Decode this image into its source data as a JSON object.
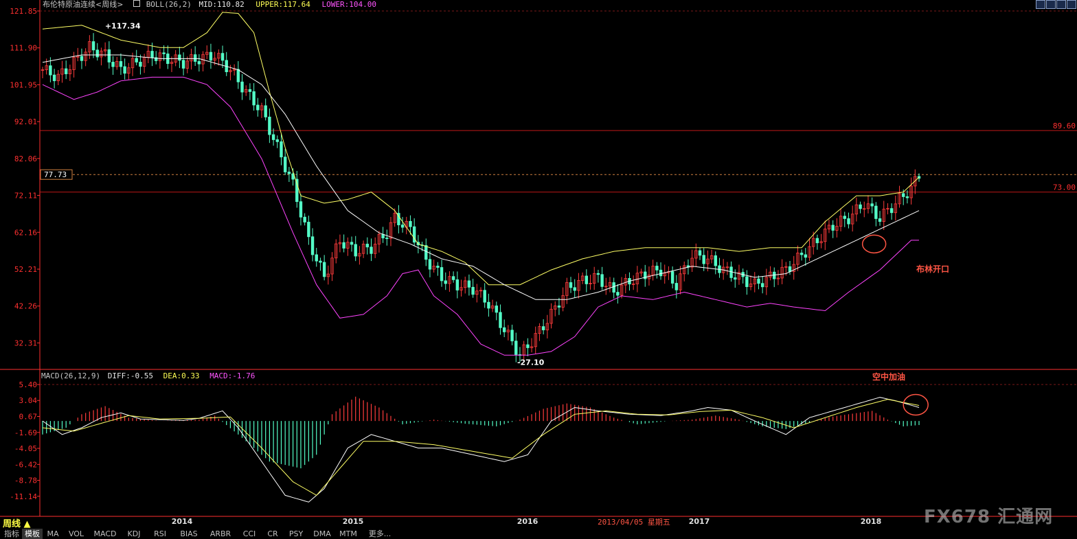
{
  "header": {
    "title": "布伦特原油连续<周线>",
    "boll_label": "BOLL(26,2)",
    "mid": "MID:110.82",
    "upper": "UPPER:117.64",
    "lower": "LOWER:104.00",
    "macd_label": "MACD(26,12,9)",
    "diff": "DIFF:-0.55",
    "dea": "DEA:0.33",
    "macd": "MACD:-1.76"
  },
  "colors": {
    "up": "#ff3c3c",
    "down": "#54ffc8",
    "mid": "#ffffff",
    "upper": "#ffff66",
    "lower": "#ff44ff",
    "axis": "#ff3030",
    "grid": "#7a1818",
    "annot": "#ff5544"
  },
  "chart_data": [
    {
      "type": "candlestick",
      "yticks": [
        "121.85",
        "111.90",
        "101.95",
        "92.01",
        "82.06",
        "72.11",
        "62.16",
        "52.21",
        "42.26",
        "32.31"
      ],
      "ylim": [
        28.5,
        121.85
      ],
      "xlabels": [
        "2014",
        "2015",
        "2016",
        "2017",
        "2018"
      ],
      "close_path": [
        [
          0,
          106
        ],
        [
          4,
          104
        ],
        [
          8,
          108
        ],
        [
          12,
          112
        ],
        [
          16,
          110
        ],
        [
          20,
          106
        ],
        [
          24,
          108
        ],
        [
          28,
          110
        ],
        [
          32,
          109
        ],
        [
          36,
          108
        ],
        [
          40,
          109
        ],
        [
          44,
          110
        ],
        [
          48,
          106
        ],
        [
          52,
          100
        ],
        [
          56,
          95
        ],
        [
          60,
          85
        ],
        [
          64,
          75
        ],
        [
          68,
          60
        ],
        [
          72,
          50
        ],
        [
          76,
          60
        ],
        [
          80,
          57
        ],
        [
          84,
          58
        ],
        [
          88,
          62
        ],
        [
          90,
          66
        ],
        [
          94,
          63
        ],
        [
          98,
          55
        ],
        [
          102,
          50
        ],
        [
          106,
          48
        ],
        [
          110,
          47
        ],
        [
          114,
          43
        ],
        [
          118,
          36
        ],
        [
          122,
          29
        ],
        [
          126,
          34
        ],
        [
          130,
          40
        ],
        [
          134,
          47
        ],
        [
          138,
          49
        ],
        [
          142,
          50
        ],
        [
          146,
          46
        ],
        [
          150,
          49
        ],
        [
          154,
          51
        ],
        [
          158,
          52
        ],
        [
          162,
          48
        ],
        [
          166,
          56
        ],
        [
          170,
          55
        ],
        [
          174,
          52
        ],
        [
          178,
          50
        ],
        [
          182,
          48
        ],
        [
          186,
          50
        ],
        [
          190,
          52
        ],
        [
          194,
          56
        ],
        [
          198,
          60
        ],
        [
          202,
          64
        ],
        [
          206,
          66
        ],
        [
          210,
          70
        ],
        [
          214,
          66
        ],
        [
          218,
          70
        ],
        [
          222,
          74
        ],
        [
          224,
          77.7
        ]
      ],
      "mid_path": [
        [
          0,
          108
        ],
        [
          10,
          110
        ],
        [
          20,
          110
        ],
        [
          30,
          109
        ],
        [
          40,
          109
        ],
        [
          50,
          106
        ],
        [
          56,
          102
        ],
        [
          62,
          94
        ],
        [
          70,
          80
        ],
        [
          78,
          68
        ],
        [
          86,
          62
        ],
        [
          94,
          59
        ],
        [
          102,
          55
        ],
        [
          110,
          53
        ],
        [
          118,
          48
        ],
        [
          126,
          44
        ],
        [
          134,
          44
        ],
        [
          142,
          46
        ],
        [
          150,
          49
        ],
        [
          158,
          51
        ],
        [
          166,
          53
        ],
        [
          174,
          52
        ],
        [
          182,
          50
        ],
        [
          190,
          51
        ],
        [
          198,
          55
        ],
        [
          206,
          59
        ],
        [
          214,
          63
        ],
        [
          220,
          66
        ],
        [
          224,
          68
        ]
      ],
      "upper_path": [
        [
          0,
          117
        ],
        [
          10,
          118
        ],
        [
          20,
          114
        ],
        [
          30,
          112
        ],
        [
          36,
          112
        ],
        [
          42,
          116
        ],
        [
          46,
          121.5
        ],
        [
          50,
          121.2
        ],
        [
          54,
          116
        ],
        [
          58,
          100
        ],
        [
          62,
          85
        ],
        [
          66,
          72
        ],
        [
          72,
          70
        ],
        [
          78,
          71
        ],
        [
          84,
          73
        ],
        [
          90,
          68
        ],
        [
          96,
          59
        ],
        [
          102,
          57
        ],
        [
          108,
          54
        ],
        [
          114,
          48
        ],
        [
          122,
          48
        ],
        [
          130,
          52
        ],
        [
          138,
          55
        ],
        [
          146,
          57
        ],
        [
          154,
          58
        ],
        [
          162,
          58
        ],
        [
          170,
          58
        ],
        [
          178,
          57
        ],
        [
          186,
          58
        ],
        [
          194,
          58
        ],
        [
          200,
          65
        ],
        [
          208,
          72
        ],
        [
          214,
          72
        ],
        [
          220,
          73
        ],
        [
          224,
          77
        ]
      ],
      "lower_path": [
        [
          0,
          102
        ],
        [
          8,
          98
        ],
        [
          14,
          100
        ],
        [
          20,
          103
        ],
        [
          28,
          104
        ],
        [
          36,
          104
        ],
        [
          42,
          102
        ],
        [
          48,
          96
        ],
        [
          56,
          82
        ],
        [
          64,
          62
        ],
        [
          70,
          48
        ],
        [
          76,
          39
        ],
        [
          82,
          40
        ],
        [
          88,
          45
        ],
        [
          92,
          51
        ],
        [
          96,
          52
        ],
        [
          100,
          45
        ],
        [
          106,
          40
        ],
        [
          112,
          32
        ],
        [
          118,
          29
        ],
        [
          124,
          29
        ],
        [
          130,
          30
        ],
        [
          136,
          34
        ],
        [
          142,
          42
        ],
        [
          148,
          45
        ],
        [
          156,
          44
        ],
        [
          164,
          46
        ],
        [
          172,
          44
        ],
        [
          180,
          42
        ],
        [
          186,
          43
        ],
        [
          192,
          42
        ],
        [
          200,
          41
        ],
        [
          206,
          46
        ],
        [
          214,
          52
        ],
        [
          222,
          60
        ],
        [
          224,
          60
        ]
      ],
      "annotations": [
        {
          "text": "117.34",
          "value": 117.34,
          "idx": 17
        },
        {
          "text": "27.10",
          "value": 27.1,
          "idx": 122
        },
        {
          "text": "77.73",
          "value": 77.73
        },
        {
          "text": "89.60",
          "value": 89.6
        },
        {
          "text": "73.00",
          "value": 73.0
        },
        {
          "text": "布林开口",
          "idx": 212
        }
      ]
    },
    {
      "type": "macd",
      "yticks": [
        "5.40",
        "3.04",
        "0.67",
        "-1.69",
        "-4.05",
        "-6.42",
        "-8.78",
        "-11.14"
      ],
      "ylim": [
        -13.4,
        5.4
      ],
      "diff_path": [
        [
          0,
          0
        ],
        [
          5,
          -2
        ],
        [
          10,
          -1
        ],
        [
          15,
          0.5
        ],
        [
          20,
          1.2
        ],
        [
          25,
          0.3
        ],
        [
          30,
          0.2
        ],
        [
          36,
          0.1
        ],
        [
          40,
          0.4
        ],
        [
          46,
          1.5
        ],
        [
          50,
          -1
        ],
        [
          56,
          -6
        ],
        [
          62,
          -11
        ],
        [
          68,
          -12
        ],
        [
          72,
          -10
        ],
        [
          78,
          -4
        ],
        [
          84,
          -2
        ],
        [
          90,
          -3
        ],
        [
          96,
          -4
        ],
        [
          102,
          -4
        ],
        [
          110,
          -5
        ],
        [
          118,
          -6
        ],
        [
          124,
          -5
        ],
        [
          130,
          0
        ],
        [
          136,
          2
        ],
        [
          142,
          1.5
        ],
        [
          150,
          1
        ],
        [
          158,
          0.8
        ],
        [
          166,
          1.5
        ],
        [
          170,
          2
        ],
        [
          176,
          1.6
        ],
        [
          182,
          0
        ],
        [
          190,
          -2
        ],
        [
          196,
          0.5
        ],
        [
          202,
          1.5
        ],
        [
          208,
          2.5
        ],
        [
          214,
          3.5
        ],
        [
          218,
          3
        ],
        [
          224,
          2
        ]
      ],
      "dea_path": [
        [
          0,
          -1
        ],
        [
          8,
          -1.5
        ],
        [
          14,
          -0.5
        ],
        [
          22,
          0.8
        ],
        [
          30,
          0.3
        ],
        [
          40,
          0.4
        ],
        [
          48,
          0.6
        ],
        [
          56,
          -4
        ],
        [
          64,
          -9
        ],
        [
          70,
          -11
        ],
        [
          76,
          -7
        ],
        [
          82,
          -3
        ],
        [
          90,
          -3
        ],
        [
          100,
          -3.5
        ],
        [
          110,
          -4.5
        ],
        [
          120,
          -5.5
        ],
        [
          128,
          -2
        ],
        [
          136,
          1
        ],
        [
          144,
          1.5
        ],
        [
          152,
          1
        ],
        [
          160,
          0.9
        ],
        [
          168,
          1.4
        ],
        [
          176,
          1.6
        ],
        [
          184,
          0.5
        ],
        [
          192,
          -1
        ],
        [
          200,
          0.5
        ],
        [
          208,
          2
        ],
        [
          216,
          3.2
        ],
        [
          224,
          2.3
        ]
      ],
      "hist_path": [
        [
          0,
          -2
        ],
        [
          6,
          -1
        ],
        [
          10,
          1
        ],
        [
          16,
          2.2
        ],
        [
          22,
          0.5
        ],
        [
          30,
          0
        ],
        [
          40,
          0.2
        ],
        [
          44,
          0.8
        ],
        [
          50,
          -2
        ],
        [
          58,
          -6
        ],
        [
          66,
          -7
        ],
        [
          70,
          -5
        ],
        [
          74,
          1
        ],
        [
          80,
          3.6
        ],
        [
          86,
          2
        ],
        [
          92,
          -0.5
        ],
        [
          100,
          0.2
        ],
        [
          108,
          -0.4
        ],
        [
          116,
          -0.8
        ],
        [
          122,
          0.2
        ],
        [
          128,
          1.8
        ],
        [
          134,
          2.6
        ],
        [
          140,
          2
        ],
        [
          146,
          0.5
        ],
        [
          152,
          -0.5
        ],
        [
          160,
          0
        ],
        [
          166,
          0.2
        ],
        [
          172,
          0.8
        ],
        [
          178,
          0.2
        ],
        [
          184,
          -0.8
        ],
        [
          190,
          -1.2
        ],
        [
          196,
          -0.2
        ],
        [
          200,
          0.5
        ],
        [
          206,
          1
        ],
        [
          212,
          1.5
        ],
        [
          216,
          0.2
        ],
        [
          220,
          -0.8
        ],
        [
          224,
          -0.6
        ]
      ],
      "annotations": [
        {
          "text": "空中加油",
          "idx": 212
        }
      ]
    }
  ],
  "footer": {
    "period": "周线 ▲",
    "crosshair_date": "2013/04/05 星期五",
    "tabs": [
      "指标",
      "模板",
      "MA",
      "VOL",
      "MACD",
      "KDJ",
      "RSI",
      "BIAS",
      "ARBR",
      "CCI",
      "CR",
      "PSY",
      "DMA",
      "MTM",
      "更多..."
    ],
    "watermark": "FX678 汇通网"
  }
}
